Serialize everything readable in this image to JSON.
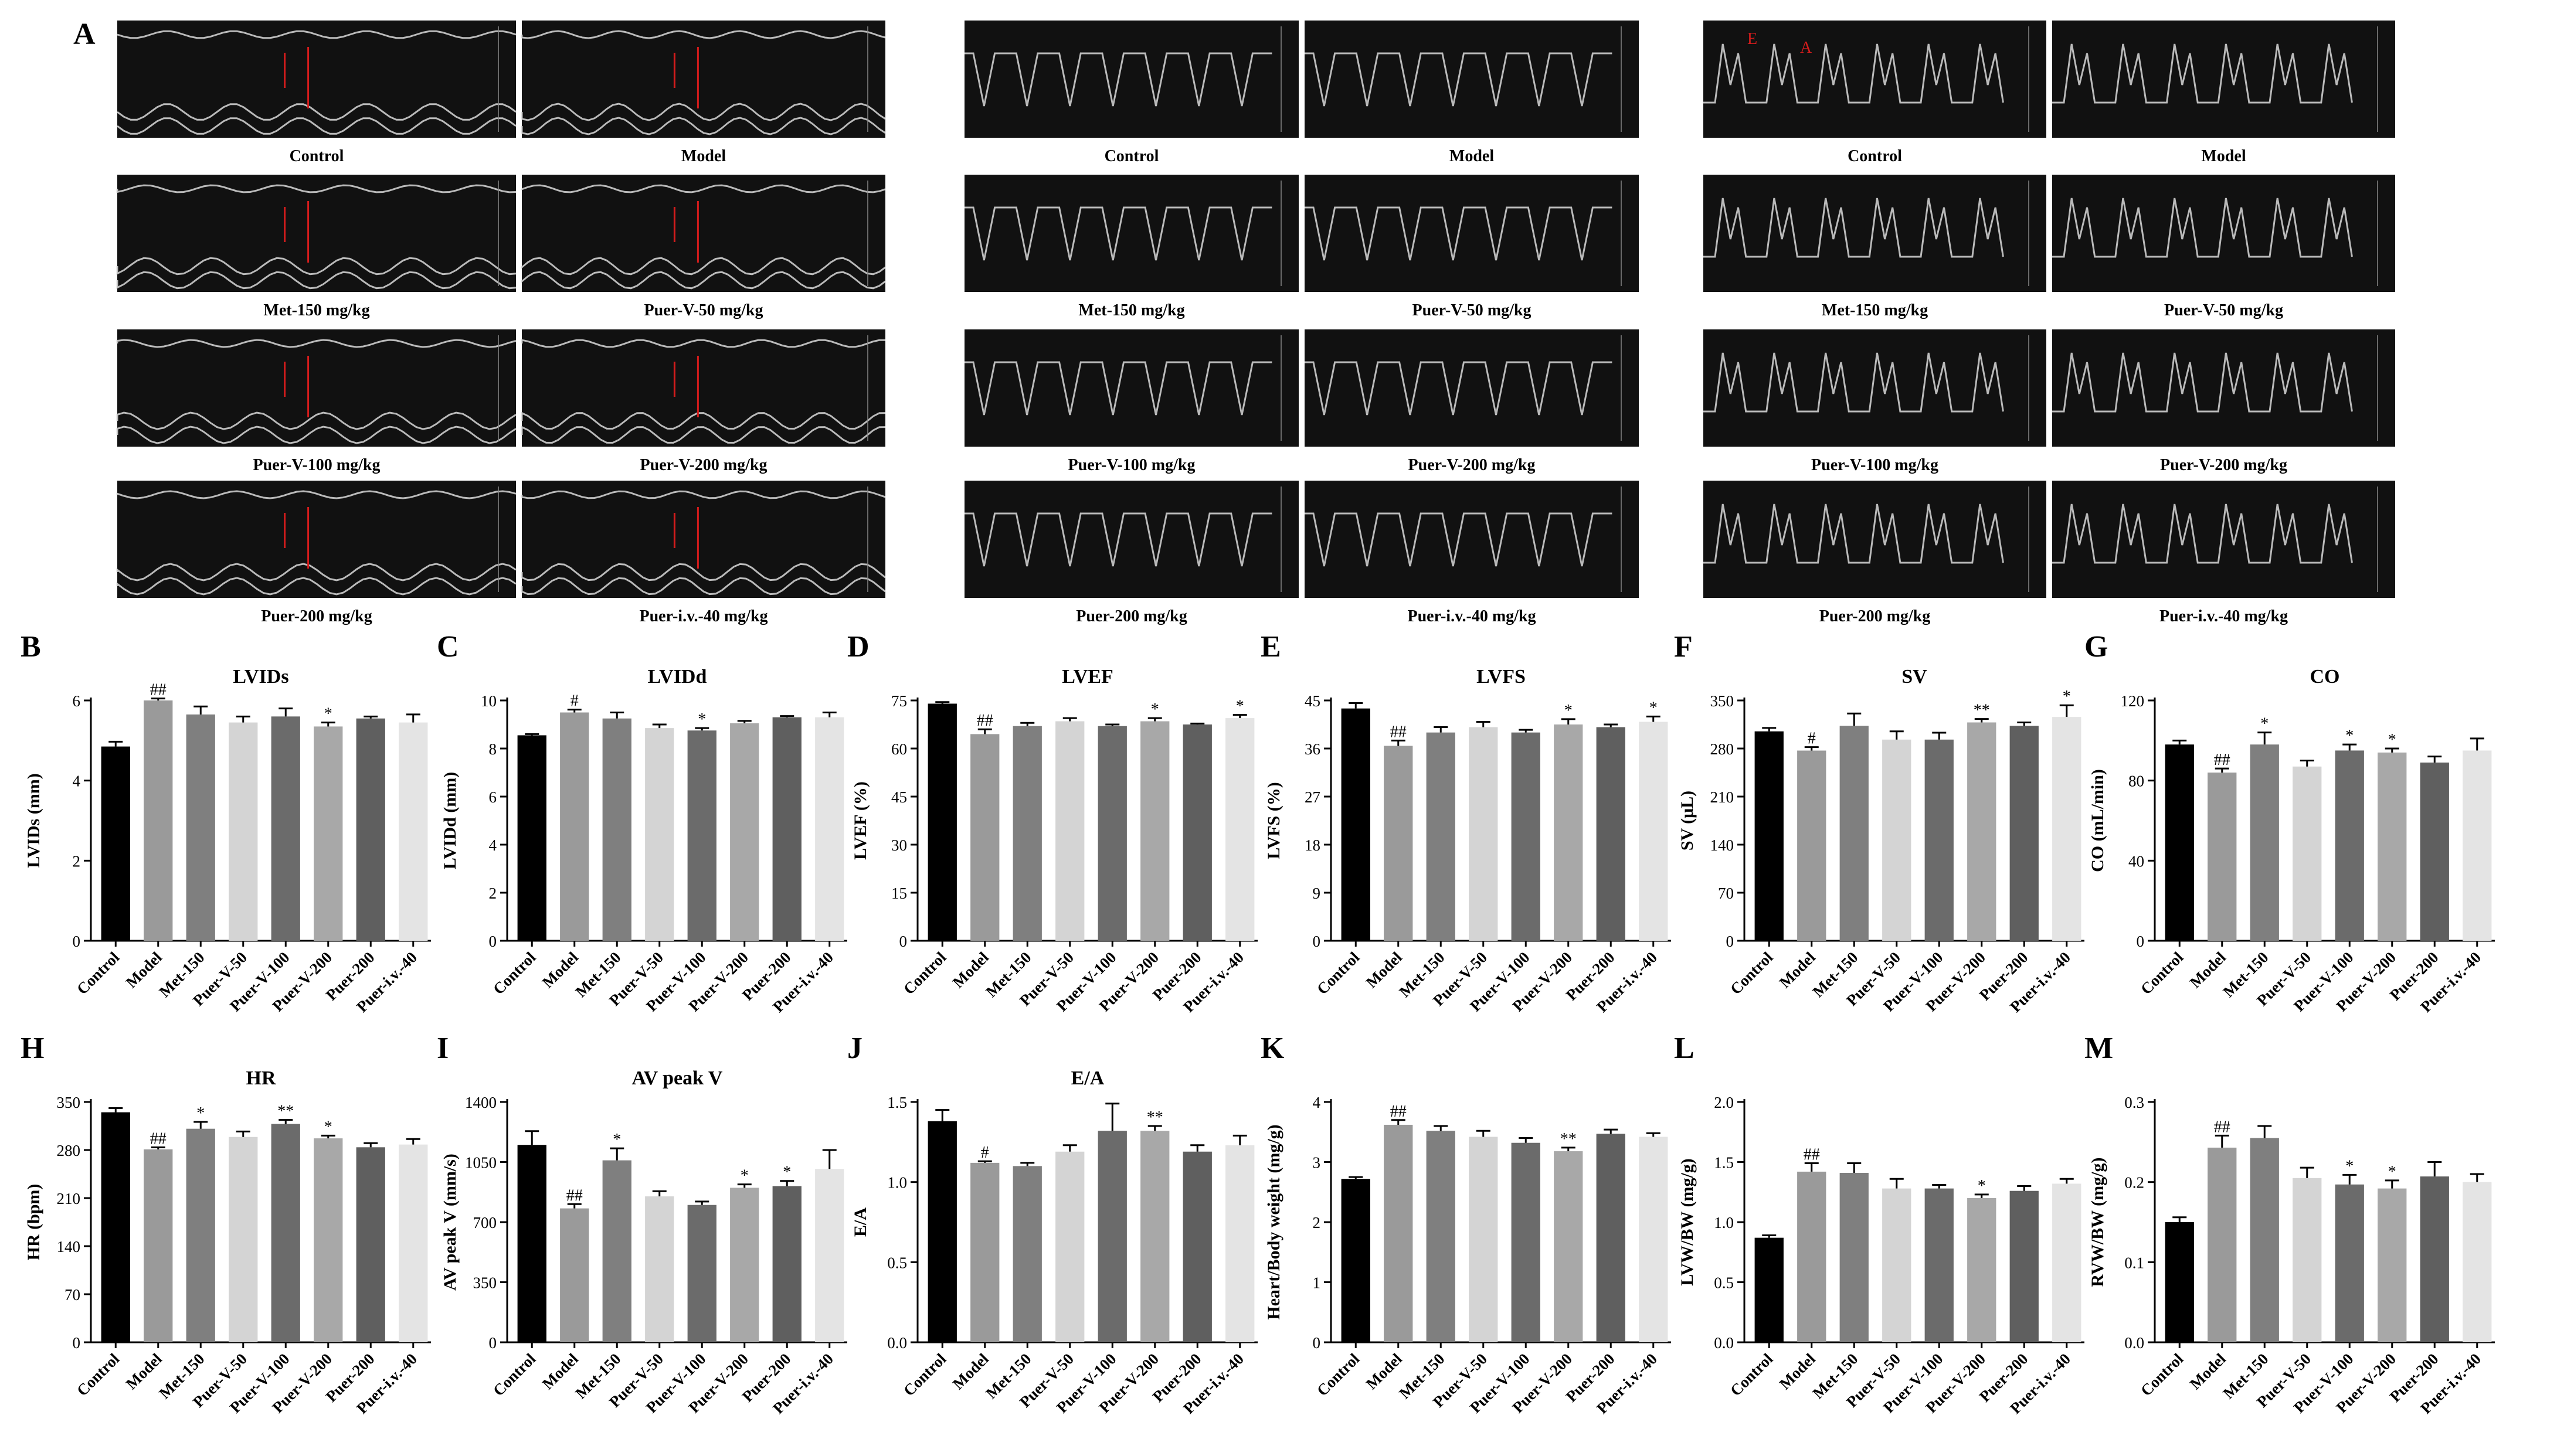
{
  "panel_a": {
    "letter": "A",
    "groups": [
      {
        "kind": "m-mode",
        "captions": [
          "Control",
          "Model",
          "Met-150 mg/kg",
          "Puer-V-50 mg/kg",
          "Puer-V-100 mg/kg",
          "Puer-V-200 mg/kg",
          "Puer-200 mg/kg",
          "Puer-i.v.-40 mg/kg"
        ]
      },
      {
        "kind": "aortic-doppler",
        "captions": [
          "Control",
          "Model",
          "Met-150 mg/kg",
          "Puer-V-50 mg/kg",
          "Puer-V-100 mg/kg",
          "Puer-V-200 mg/kg",
          "Puer-200 mg/kg",
          "Puer-i.v.-40 mg/kg"
        ]
      },
      {
        "kind": "mitral-doppler",
        "captions": [
          "Control",
          "Model",
          "Met-150 mg/kg",
          "Puer-V-50 mg/kg",
          "Puer-V-100 mg/kg",
          "Puer-V-200 mg/kg",
          "Puer-200 mg/kg",
          "Puer-i.v.-40 mg/kg"
        ],
        "markers": [
          "E",
          "A"
        ]
      }
    ]
  },
  "colors": {
    "bars": [
      "#000000",
      "#9a9a9a",
      "#7f7f7f",
      "#d4d4d4",
      "#6b6b6b",
      "#a8a8a8",
      "#5f5f5f",
      "#e4e4e4"
    ],
    "arrow": "#d41c1c"
  },
  "chart_data": [
    {
      "type": "bar",
      "letter": "B",
      "title": "LVIDs",
      "ylabel": "LVIDs (mm)",
      "ylim": [
        0,
        6
      ],
      "yticks": [
        0,
        2,
        4,
        6
      ],
      "categories": [
        "Control",
        "Model",
        "Met-150",
        "Puer-V-50",
        "Puer-V-100",
        "Puer-V-200",
        "Puer-200",
        "Puer-i.v.-40"
      ],
      "values": [
        4.85,
        6.0,
        5.65,
        5.45,
        5.6,
        5.35,
        5.55,
        5.45
      ],
      "errors": [
        0.12,
        0.05,
        0.2,
        0.15,
        0.2,
        0.1,
        0.05,
        0.2
      ],
      "marks": [
        "",
        "##",
        "",
        "",
        "",
        "*",
        "",
        ""
      ]
    },
    {
      "type": "bar",
      "letter": "C",
      "title": "LVIDd",
      "ylabel": "LVIDd (mm)",
      "ylim": [
        0,
        10
      ],
      "yticks": [
        0,
        2,
        4,
        6,
        8,
        10
      ],
      "categories": [
        "Control",
        "Model",
        "Met-150",
        "Puer-V-50",
        "Puer-V-100",
        "Puer-V-200",
        "Puer-200",
        "Puer-i.v.-40"
      ],
      "values": [
        8.55,
        9.5,
        9.25,
        8.85,
        8.75,
        9.05,
        9.3,
        9.3
      ],
      "errors": [
        0.05,
        0.12,
        0.25,
        0.15,
        0.1,
        0.1,
        0.05,
        0.2
      ],
      "marks": [
        "",
        "#",
        "",
        "",
        "*",
        "",
        "",
        ""
      ]
    },
    {
      "type": "bar",
      "letter": "D",
      "title": "LVEF",
      "ylabel": "LVEF (%)",
      "ylim": [
        0,
        75
      ],
      "yticks": [
        0,
        15,
        30,
        45,
        60,
        75
      ],
      "categories": [
        "Control",
        "Model",
        "Met-150",
        "Puer-V-50",
        "Puer-V-100",
        "Puer-V-200",
        "Puer-200",
        "Puer-i.v.-40"
      ],
      "values": [
        74,
        64.5,
        67,
        68.5,
        67,
        68.5,
        67.5,
        69.5
      ],
      "errors": [
        0.5,
        1.5,
        1,
        1,
        0.5,
        1,
        0.3,
        1
      ],
      "marks": [
        "",
        "##",
        "",
        "",
        "",
        "*",
        "",
        "*"
      ]
    },
    {
      "type": "bar",
      "letter": "E",
      "title": "LVFS",
      "ylabel": "LVFS (%)",
      "ylim": [
        0,
        45
      ],
      "yticks": [
        0,
        9,
        18,
        27,
        36,
        45
      ],
      "categories": [
        "Control",
        "Model",
        "Met-150",
        "Puer-V-50",
        "Puer-V-100",
        "Puer-V-200",
        "Puer-200",
        "Puer-i.v.-40"
      ],
      "values": [
        43.5,
        36.5,
        39,
        40,
        39,
        40.5,
        40,
        41
      ],
      "errors": [
        1,
        1,
        1,
        1,
        0.5,
        1,
        0.5,
        1
      ],
      "marks": [
        "",
        "##",
        "",
        "",
        "",
        "*",
        "",
        "*"
      ]
    },
    {
      "type": "bar",
      "letter": "F",
      "title": "SV",
      "ylabel": "SV (μL)",
      "ylim": [
        0,
        350
      ],
      "yticks": [
        0,
        70,
        140,
        210,
        280,
        350
      ],
      "categories": [
        "Control",
        "Model",
        "Met-150",
        "Puer-V-50",
        "Puer-V-100",
        "Puer-V-200",
        "Puer-200",
        "Puer-i.v.-40"
      ],
      "values": [
        305,
        277,
        313,
        293,
        293,
        318,
        313,
        326
      ],
      "errors": [
        5,
        5,
        18,
        12,
        10,
        5,
        5,
        17
      ],
      "marks": [
        "",
        "#",
        "",
        "",
        "",
        "**",
        "",
        "*"
      ]
    },
    {
      "type": "bar",
      "letter": "G",
      "title": "CO",
      "ylabel": "CO (mL/min)",
      "ylim": [
        0,
        120
      ],
      "yticks": [
        0,
        40,
        80,
        120
      ],
      "categories": [
        "Control",
        "Model",
        "Met-150",
        "Puer-V-50",
        "Puer-V-100",
        "Puer-V-200",
        "Puer-200",
        "Puer-i.v.-40"
      ],
      "values": [
        98,
        84,
        98,
        87,
        95,
        94,
        89,
        95
      ],
      "errors": [
        2,
        2,
        6,
        3,
        3,
        2,
        3,
        6
      ],
      "marks": [
        "",
        "##",
        "*",
        "",
        "*",
        "*",
        "",
        ""
      ]
    },
    {
      "type": "bar",
      "letter": "H",
      "title": "HR",
      "ylabel": "HR (bpm)",
      "ylim": [
        0,
        350
      ],
      "yticks": [
        0,
        70,
        140,
        210,
        280,
        350
      ],
      "categories": [
        "Control",
        "Model",
        "Met-150",
        "Puer-V-50",
        "Puer-V-100",
        "Puer-V-200",
        "Puer-200",
        "Puer-i.v.-40"
      ],
      "values": [
        335,
        281,
        311,
        299,
        318,
        297,
        284,
        288
      ],
      "errors": [
        6,
        3,
        10,
        8,
        6,
        4,
        6,
        8
      ],
      "marks": [
        "",
        "##",
        "*",
        "",
        "**",
        "*",
        "",
        ""
      ]
    },
    {
      "type": "bar",
      "letter": "I",
      "title": "AV peak V",
      "ylabel": "AV peak V (mm/s)",
      "ylim": [
        0,
        1400
      ],
      "yticks": [
        0,
        350,
        700,
        1050,
        1400
      ],
      "categories": [
        "Control",
        "Model",
        "Met-150",
        "Puer-V-50",
        "Puer-V-100",
        "Puer-V-200",
        "Puer-200",
        "Puer-i.v.-40"
      ],
      "values": [
        1150,
        780,
        1060,
        850,
        800,
        900,
        910,
        1010
      ],
      "errors": [
        80,
        25,
        70,
        30,
        20,
        20,
        30,
        110
      ],
      "marks": [
        "",
        "##",
        "*",
        "",
        "",
        "*",
        "*",
        ""
      ]
    },
    {
      "type": "bar",
      "letter": "J",
      "title": "E/A",
      "ylabel": "E/A",
      "ylim": [
        0,
        1.5
      ],
      "yticks": [
        0.0,
        0.5,
        1.0,
        1.5
      ],
      "categories": [
        "Control",
        "Model",
        "Met-150",
        "Puer-V-50",
        "Puer-V-100",
        "Puer-V-200",
        "Puer-200",
        "Puer-i.v.-40"
      ],
      "values": [
        1.38,
        1.12,
        1.1,
        1.19,
        1.32,
        1.32,
        1.19,
        1.23
      ],
      "errors": [
        0.07,
        0.01,
        0.02,
        0.04,
        0.17,
        0.03,
        0.04,
        0.06
      ],
      "marks": [
        "",
        "#",
        "",
        "",
        "",
        "**",
        "",
        ""
      ]
    },
    {
      "type": "bar",
      "letter": "K",
      "title": "",
      "ylabel": "Heart/Body weight (mg/g)",
      "ylim": [
        0,
        4
      ],
      "yticks": [
        0,
        1,
        2,
        3,
        4
      ],
      "categories": [
        "Control",
        "Model",
        "Met-150",
        "Puer-V-50",
        "Puer-V-100",
        "Puer-V-200",
        "Puer-200",
        "Puer-i.v.-40"
      ],
      "values": [
        2.72,
        3.62,
        3.52,
        3.42,
        3.32,
        3.18,
        3.47,
        3.42
      ],
      "errors": [
        0.03,
        0.08,
        0.08,
        0.1,
        0.08,
        0.06,
        0.07,
        0.06
      ],
      "marks": [
        "",
        "##",
        "",
        "",
        "",
        "**",
        "",
        ""
      ]
    },
    {
      "type": "bar",
      "letter": "L",
      "title": "",
      "ylabel": "LVW/BW (mg/g)",
      "ylim": [
        0,
        2.0
      ],
      "yticks": [
        0.0,
        0.5,
        1.0,
        1.5,
        2.0
      ],
      "categories": [
        "Control",
        "Model",
        "Met-150",
        "Puer-V-50",
        "Puer-V-100",
        "Puer-V-200",
        "Puer-200",
        "Puer-i.v.-40"
      ],
      "values": [
        0.87,
        1.42,
        1.41,
        1.28,
        1.28,
        1.2,
        1.26,
        1.32
      ],
      "errors": [
        0.02,
        0.07,
        0.08,
        0.08,
        0.03,
        0.03,
        0.04,
        0.04
      ],
      "marks": [
        "",
        "##",
        "",
        "",
        "",
        "*",
        "",
        ""
      ]
    },
    {
      "type": "bar",
      "letter": "M",
      "title": "",
      "ylabel": "RVW/BW (mg/g)",
      "ylim": [
        0,
        0.3
      ],
      "yticks": [
        0.0,
        0.1,
        0.2,
        0.3
      ],
      "categories": [
        "Control",
        "Model",
        "Met-150",
        "Puer-V-50",
        "Puer-V-100",
        "Puer-V-200",
        "Puer-200",
        "Puer-i.v.-40"
      ],
      "values": [
        0.15,
        0.243,
        0.255,
        0.205,
        0.197,
        0.192,
        0.207,
        0.2
      ],
      "errors": [
        0.006,
        0.015,
        0.015,
        0.013,
        0.012,
        0.01,
        0.018,
        0.01
      ],
      "marks": [
        "",
        "##",
        "",
        "",
        "*",
        "*",
        "",
        ""
      ]
    }
  ]
}
